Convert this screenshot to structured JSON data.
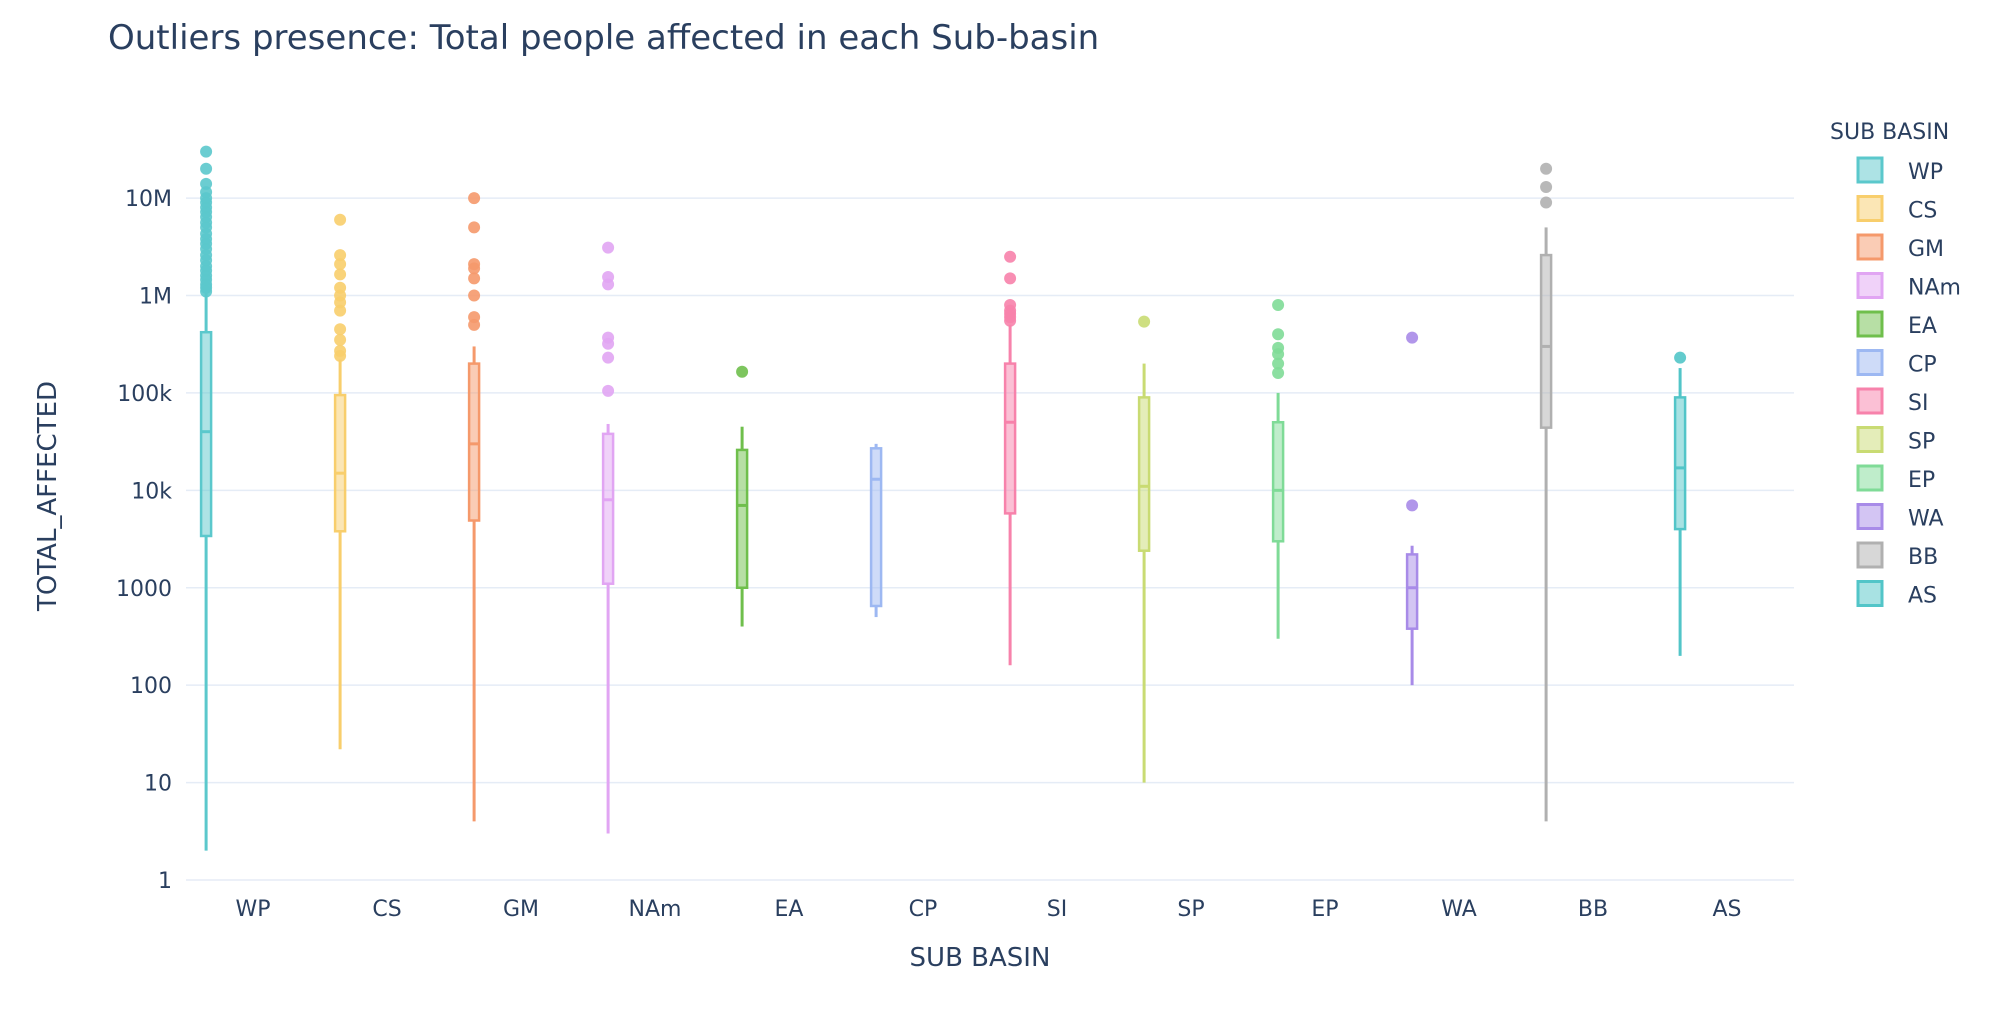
{
  "chart_data": {
    "type": "box",
    "title": "Outliers presence: Total people affected in each Sub-basin",
    "xlabel": "SUB BASIN",
    "ylabel": "TOTAL_AFFECTED",
    "y_scale": "log",
    "ylim": [
      1,
      50000000
    ],
    "y_ticks": [
      {
        "value": 1,
        "label": "1"
      },
      {
        "value": 10,
        "label": "10"
      },
      {
        "value": 100,
        "label": "100"
      },
      {
        "value": 1000,
        "label": "1000"
      },
      {
        "value": 10000,
        "label": "10k"
      },
      {
        "value": 100000,
        "label": "100k"
      },
      {
        "value": 1000000,
        "label": "1M"
      },
      {
        "value": 10000000,
        "label": "10M"
      }
    ],
    "grid": true,
    "legend_title": "SUB BASIN",
    "legend_position": "right",
    "categories": [
      "WP",
      "CS",
      "GM",
      "NAm",
      "EA",
      "CP",
      "SI",
      "SP",
      "EP",
      "WA",
      "BB",
      "AS"
    ],
    "series": [
      {
        "name": "WP",
        "color": "#5bc8cc",
        "min": 2,
        "q1": 3400,
        "median": 40000,
        "q3": 420000,
        "max": 1050000,
        "outliers": [
          1100000,
          1200000,
          1300000,
          1450000,
          1600000,
          1800000,
          2000000,
          2300000,
          2600000,
          3000000,
          3400000,
          3800000,
          4300000,
          5000000,
          5600000,
          6400000,
          7200000,
          8000000,
          9000000,
          10000000,
          11500000,
          14000000,
          20000000,
          30000000
        ]
      },
      {
        "name": "CS",
        "color": "#f8ce6c",
        "min": 22,
        "q1": 3800,
        "median": 15000,
        "q3": 95000,
        "max": 220000,
        "outliers": [
          240000,
          270000,
          350000,
          450000,
          700000,
          850000,
          1000000,
          1200000,
          1650000,
          2100000,
          2600000,
          6000000
        ]
      },
      {
        "name": "GM",
        "color": "#f5996b",
        "min": 4,
        "q1": 4900,
        "median": 30000,
        "q3": 200000,
        "max": 300000,
        "outliers": [
          500000,
          600000,
          1000000,
          1500000,
          1900000,
          2100000,
          5000000,
          10000000
        ]
      },
      {
        "name": "NAm",
        "color": "#e1a5f3",
        "min": 3,
        "q1": 1100,
        "median": 8000,
        "q3": 38000,
        "max": 48000,
        "outliers": [
          105000,
          230000,
          320000,
          370000,
          1300000,
          1550000,
          3100000
        ]
      },
      {
        "name": "EA",
        "color": "#6fbf4c",
        "min": 400,
        "q1": 1000,
        "median": 7000,
        "q3": 26000,
        "max": 45000,
        "outliers": [
          165000
        ]
      },
      {
        "name": "CP",
        "color": "#9db8f2",
        "min": 500,
        "q1": 650,
        "median": 13000,
        "q3": 27000,
        "max": 30000,
        "outliers": []
      },
      {
        "name": "SI",
        "color": "#f782ab",
        "min": 160,
        "q1": 5800,
        "median": 50000,
        "q3": 200000,
        "max": 500000,
        "outliers": [
          550000,
          600000,
          650000,
          700000,
          800000,
          1500000,
          2500000
        ]
      },
      {
        "name": "SP",
        "color": "#c9db73",
        "min": 10,
        "q1": 2400,
        "median": 11000,
        "q3": 90000,
        "max": 200000,
        "outliers": [
          540000
        ]
      },
      {
        "name": "EP",
        "color": "#7fdb97",
        "min": 300,
        "q1": 3000,
        "median": 10000,
        "q3": 50000,
        "max": 100000,
        "outliers": [
          160000,
          200000,
          250000,
          290000,
          400000,
          800000
        ]
      },
      {
        "name": "WA",
        "color": "#a88be8",
        "min": 100,
        "q1": 380,
        "median": 1000,
        "q3": 2200,
        "max": 2700,
        "outliers": [
          7000,
          370000
        ]
      },
      {
        "name": "BB",
        "color": "#b0b0b0",
        "min": 4,
        "q1": 44000,
        "median": 300000,
        "q3": 2600000,
        "max": 5000000,
        "outliers": [
          9000000,
          13000000,
          20000000
        ]
      },
      {
        "name": "AS",
        "color": "#52c5c8",
        "min": 200,
        "q1": 4000,
        "median": 17000,
        "q3": 90000,
        "max": 180000,
        "outliers": [
          230000
        ]
      }
    ]
  }
}
